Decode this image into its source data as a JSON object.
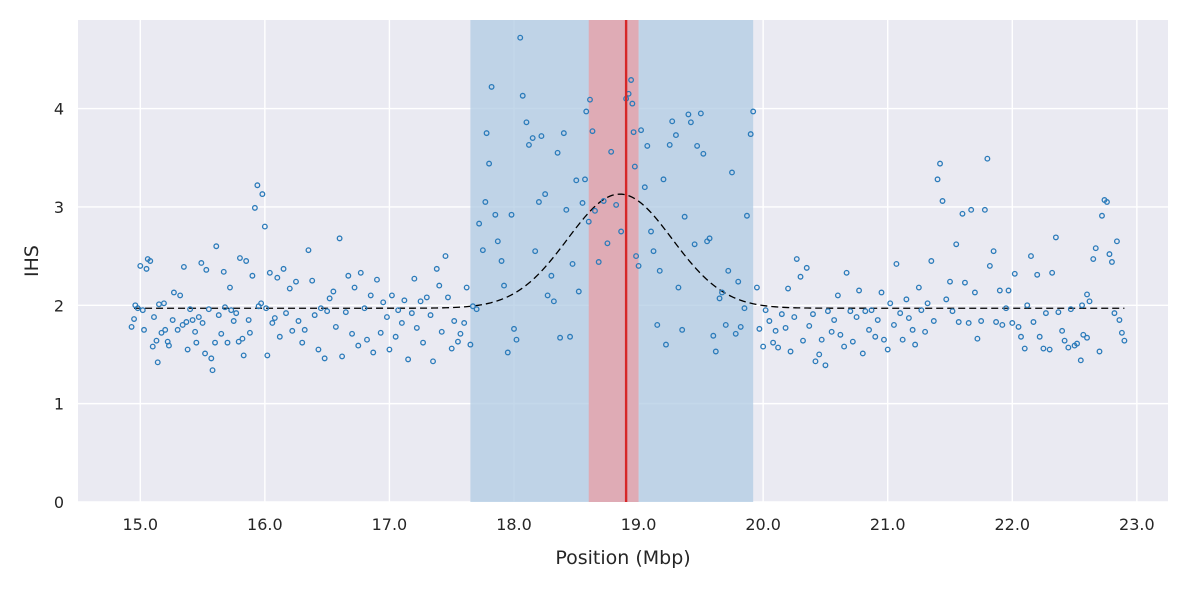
{
  "chart_data": {
    "type": "scatter",
    "xlabel": "Position (Mbp)",
    "ylabel": "IHS",
    "xlim": [
      14.5,
      23.25
    ],
    "ylim": [
      0,
      4.9
    ],
    "grid": true,
    "x_ticks": [
      "15.0",
      "16.0",
      "17.0",
      "18.0",
      "19.0",
      "20.0",
      "21.0",
      "22.0",
      "23.0"
    ],
    "y_ticks": [
      "0",
      "1",
      "2",
      "3",
      "4"
    ],
    "colors": {
      "background": "#eaeaf2",
      "grid": "#ffffff",
      "points": "#2b7bba",
      "curve": "#000000",
      "outer_region": "#b0cbe3",
      "inner_region": "#e4a3ab",
      "peak_line": "#d62728"
    },
    "outer_region": [
      17.65,
      19.92
    ],
    "inner_region": [
      18.6,
      19.0
    ],
    "peak_line": 18.9,
    "curve": {
      "type": "gaussian",
      "baseline": 1.97,
      "amplitude": 1.16,
      "center": 18.85,
      "sigma": 0.42,
      "x_start": 14.95,
      "x_end": 22.9
    },
    "points": [
      [
        14.93,
        1.78
      ],
      [
        14.95,
        1.86
      ],
      [
        14.96,
        2.0
      ],
      [
        14.98,
        1.97
      ],
      [
        15.0,
        2.4
      ],
      [
        15.02,
        1.95
      ],
      [
        15.03,
        1.75
      ],
      [
        15.05,
        2.37
      ],
      [
        15.06,
        2.47
      ],
      [
        15.08,
        2.45
      ],
      [
        15.1,
        1.58
      ],
      [
        15.11,
        1.88
      ],
      [
        15.13,
        1.64
      ],
      [
        15.14,
        1.42
      ],
      [
        15.15,
        2.01
      ],
      [
        15.17,
        1.72
      ],
      [
        15.19,
        2.02
      ],
      [
        15.2,
        1.75
      ],
      [
        15.22,
        1.63
      ],
      [
        15.23,
        1.59
      ],
      [
        15.26,
        1.85
      ],
      [
        15.27,
        2.13
      ],
      [
        15.3,
        1.75
      ],
      [
        15.32,
        2.1
      ],
      [
        15.34,
        1.8
      ],
      [
        15.35,
        2.39
      ],
      [
        15.37,
        1.83
      ],
      [
        15.38,
        1.55
      ],
      [
        15.4,
        1.96
      ],
      [
        15.42,
        1.85
      ],
      [
        15.44,
        1.73
      ],
      [
        15.45,
        1.62
      ],
      [
        15.47,
        1.88
      ],
      [
        15.49,
        2.43
      ],
      [
        15.5,
        1.82
      ],
      [
        15.52,
        1.51
      ],
      [
        15.53,
        2.36
      ],
      [
        15.55,
        1.96
      ],
      [
        15.57,
        1.46
      ],
      [
        15.58,
        1.34
      ],
      [
        15.6,
        1.62
      ],
      [
        15.61,
        2.6
      ],
      [
        15.63,
        1.9
      ],
      [
        15.65,
        1.71
      ],
      [
        15.67,
        2.34
      ],
      [
        15.68,
        1.98
      ],
      [
        15.7,
        1.62
      ],
      [
        15.72,
        2.18
      ],
      [
        15.73,
        1.95
      ],
      [
        15.75,
        1.84
      ],
      [
        15.77,
        1.92
      ],
      [
        15.79,
        1.63
      ],
      [
        15.8,
        2.48
      ],
      [
        15.82,
        1.66
      ],
      [
        15.83,
        1.49
      ],
      [
        15.85,
        2.45
      ],
      [
        15.87,
        1.85
      ],
      [
        15.88,
        1.72
      ],
      [
        15.9,
        2.3
      ],
      [
        15.92,
        2.99
      ],
      [
        15.94,
        3.22
      ],
      [
        15.95,
        1.99
      ],
      [
        15.97,
        2.02
      ],
      [
        15.98,
        3.13
      ],
      [
        16.0,
        2.8
      ],
      [
        16.01,
        1.97
      ],
      [
        16.02,
        1.49
      ],
      [
        16.04,
        2.33
      ],
      [
        16.06,
        1.82
      ],
      [
        16.08,
        1.87
      ],
      [
        16.1,
        2.28
      ],
      [
        16.12,
        1.68
      ],
      [
        16.15,
        2.37
      ],
      [
        16.17,
        1.92
      ],
      [
        16.2,
        2.17
      ],
      [
        16.22,
        1.74
      ],
      [
        16.25,
        2.24
      ],
      [
        16.27,
        1.84
      ],
      [
        16.3,
        1.62
      ],
      [
        16.32,
        1.75
      ],
      [
        16.35,
        2.56
      ],
      [
        16.38,
        2.25
      ],
      [
        16.4,
        1.9
      ],
      [
        16.43,
        1.55
      ],
      [
        16.45,
        1.97
      ],
      [
        16.48,
        1.46
      ],
      [
        16.5,
        1.94
      ],
      [
        16.52,
        2.07
      ],
      [
        16.55,
        2.14
      ],
      [
        16.57,
        1.78
      ],
      [
        16.6,
        2.68
      ],
      [
        16.62,
        1.48
      ],
      [
        16.65,
        1.93
      ],
      [
        16.67,
        2.3
      ],
      [
        16.7,
        1.71
      ],
      [
        16.72,
        2.18
      ],
      [
        16.75,
        1.59
      ],
      [
        16.77,
        2.33
      ],
      [
        16.8,
        1.97
      ],
      [
        16.82,
        1.65
      ],
      [
        16.85,
        2.1
      ],
      [
        16.87,
        1.52
      ],
      [
        16.9,
        2.26
      ],
      [
        16.93,
        1.72
      ],
      [
        16.95,
        2.03
      ],
      [
        16.98,
        1.88
      ],
      [
        17.0,
        1.55
      ],
      [
        17.02,
        2.1
      ],
      [
        17.05,
        1.68
      ],
      [
        17.07,
        1.95
      ],
      [
        17.1,
        1.82
      ],
      [
        17.12,
        2.05
      ],
      [
        17.15,
        1.45
      ],
      [
        17.18,
        1.92
      ],
      [
        17.2,
        2.27
      ],
      [
        17.22,
        1.77
      ],
      [
        17.25,
        2.04
      ],
      [
        17.27,
        1.62
      ],
      [
        17.3,
        2.08
      ],
      [
        17.33,
        1.9
      ],
      [
        17.35,
        1.43
      ],
      [
        17.38,
        2.37
      ],
      [
        17.4,
        2.2
      ],
      [
        17.42,
        1.73
      ],
      [
        17.45,
        2.5
      ],
      [
        17.47,
        2.08
      ],
      [
        17.5,
        1.56
      ],
      [
        17.52,
        1.84
      ],
      [
        17.55,
        1.63
      ],
      [
        17.57,
        1.71
      ],
      [
        17.6,
        1.82
      ],
      [
        17.62,
        2.18
      ],
      [
        17.65,
        1.6
      ],
      [
        17.67,
        1.99
      ],
      [
        17.7,
        1.96
      ],
      [
        17.72,
        2.83
      ],
      [
        17.75,
        2.56
      ],
      [
        17.77,
        3.05
      ],
      [
        17.78,
        3.75
      ],
      [
        17.8,
        3.44
      ],
      [
        17.82,
        4.22
      ],
      [
        17.85,
        2.92
      ],
      [
        17.87,
        2.65
      ],
      [
        17.9,
        2.45
      ],
      [
        17.92,
        2.2
      ],
      [
        17.95,
        1.52
      ],
      [
        17.98,
        2.92
      ],
      [
        18.0,
        1.76
      ],
      [
        18.02,
        1.65
      ],
      [
        18.05,
        4.72
      ],
      [
        18.07,
        4.13
      ],
      [
        18.1,
        3.86
      ],
      [
        18.12,
        3.63
      ],
      [
        18.15,
        3.7
      ],
      [
        18.17,
        2.55
      ],
      [
        18.2,
        3.05
      ],
      [
        18.22,
        3.72
      ],
      [
        18.25,
        3.13
      ],
      [
        18.27,
        2.1
      ],
      [
        18.3,
        2.3
      ],
      [
        18.32,
        2.04
      ],
      [
        18.35,
        3.55
      ],
      [
        18.37,
        1.67
      ],
      [
        18.4,
        3.75
      ],
      [
        18.42,
        2.97
      ],
      [
        18.45,
        1.68
      ],
      [
        18.47,
        2.42
      ],
      [
        18.5,
        3.27
      ],
      [
        18.52,
        2.14
      ],
      [
        18.55,
        3.04
      ],
      [
        18.57,
        3.28
      ],
      [
        18.58,
        3.97
      ],
      [
        18.6,
        2.85
      ],
      [
        18.61,
        4.09
      ],
      [
        18.63,
        3.77
      ],
      [
        18.65,
        2.96
      ],
      [
        18.68,
        2.44
      ],
      [
        18.72,
        3.06
      ],
      [
        18.75,
        2.63
      ],
      [
        18.78,
        3.56
      ],
      [
        18.82,
        3.02
      ],
      [
        18.86,
        2.75
      ],
      [
        18.9,
        4.1
      ],
      [
        18.92,
        4.15
      ],
      [
        18.94,
        4.29
      ],
      [
        18.95,
        4.05
      ],
      [
        18.96,
        3.76
      ],
      [
        18.97,
        3.41
      ],
      [
        18.98,
        2.5
      ],
      [
        19.0,
        2.4
      ],
      [
        19.02,
        3.78
      ],
      [
        19.05,
        3.2
      ],
      [
        19.07,
        3.62
      ],
      [
        19.1,
        2.75
      ],
      [
        19.12,
        2.55
      ],
      [
        19.15,
        1.8
      ],
      [
        19.17,
        2.35
      ],
      [
        19.2,
        3.28
      ],
      [
        19.22,
        1.6
      ],
      [
        19.25,
        3.63
      ],
      [
        19.27,
        3.87
      ],
      [
        19.3,
        3.73
      ],
      [
        19.32,
        2.18
      ],
      [
        19.35,
        1.75
      ],
      [
        19.37,
        2.9
      ],
      [
        19.4,
        3.94
      ],
      [
        19.42,
        3.86
      ],
      [
        19.45,
        2.62
      ],
      [
        19.47,
        3.62
      ],
      [
        19.5,
        3.95
      ],
      [
        19.52,
        3.54
      ],
      [
        19.55,
        2.65
      ],
      [
        19.57,
        2.68
      ],
      [
        19.6,
        1.69
      ],
      [
        19.62,
        1.53
      ],
      [
        19.65,
        2.07
      ],
      [
        19.67,
        2.13
      ],
      [
        19.7,
        1.8
      ],
      [
        19.72,
        2.35
      ],
      [
        19.75,
        3.35
      ],
      [
        19.78,
        1.71
      ],
      [
        19.8,
        2.24
      ],
      [
        19.82,
        1.78
      ],
      [
        19.85,
        1.97
      ],
      [
        19.87,
        2.91
      ],
      [
        19.9,
        3.74
      ],
      [
        19.92,
        3.97
      ],
      [
        19.95,
        2.18
      ],
      [
        19.97,
        1.76
      ],
      [
        20.0,
        1.58
      ],
      [
        20.02,
        1.95
      ],
      [
        20.05,
        1.84
      ],
      [
        20.08,
        1.62
      ],
      [
        20.1,
        1.74
      ],
      [
        20.12,
        1.57
      ],
      [
        20.15,
        1.91
      ],
      [
        20.18,
        1.77
      ],
      [
        20.2,
        2.17
      ],
      [
        20.22,
        1.53
      ],
      [
        20.25,
        1.88
      ],
      [
        20.27,
        2.47
      ],
      [
        20.3,
        2.29
      ],
      [
        20.32,
        1.64
      ],
      [
        20.35,
        2.38
      ],
      [
        20.37,
        1.79
      ],
      [
        20.4,
        1.91
      ],
      [
        20.42,
        1.43
      ],
      [
        20.45,
        1.5
      ],
      [
        20.47,
        1.65
      ],
      [
        20.5,
        1.39
      ],
      [
        20.52,
        1.94
      ],
      [
        20.55,
        1.73
      ],
      [
        20.57,
        1.85
      ],
      [
        20.6,
        2.1
      ],
      [
        20.62,
        1.7
      ],
      [
        20.65,
        1.58
      ],
      [
        20.67,
        2.33
      ],
      [
        20.7,
        1.94
      ],
      [
        20.72,
        1.63
      ],
      [
        20.75,
        1.88
      ],
      [
        20.77,
        2.15
      ],
      [
        20.8,
        1.51
      ],
      [
        20.82,
        1.94
      ],
      [
        20.85,
        1.75
      ],
      [
        20.87,
        1.95
      ],
      [
        20.9,
        1.68
      ],
      [
        20.92,
        1.85
      ],
      [
        20.95,
        2.13
      ],
      [
        20.97,
        1.65
      ],
      [
        21.0,
        1.55
      ],
      [
        21.02,
        2.02
      ],
      [
        21.05,
        1.8
      ],
      [
        21.07,
        2.42
      ],
      [
        21.1,
        1.92
      ],
      [
        21.12,
        1.65
      ],
      [
        21.15,
        2.06
      ],
      [
        21.17,
        1.87
      ],
      [
        21.2,
        1.75
      ],
      [
        21.22,
        1.6
      ],
      [
        21.25,
        2.18
      ],
      [
        21.27,
        1.95
      ],
      [
        21.3,
        1.73
      ],
      [
        21.32,
        2.02
      ],
      [
        21.35,
        2.45
      ],
      [
        21.37,
        1.84
      ],
      [
        21.4,
        3.28
      ],
      [
        21.42,
        3.44
      ],
      [
        21.44,
        3.06
      ],
      [
        21.47,
        2.06
      ],
      [
        21.5,
        2.24
      ],
      [
        21.52,
        1.94
      ],
      [
        21.55,
        2.62
      ],
      [
        21.57,
        1.83
      ],
      [
        21.6,
        2.93
      ],
      [
        21.62,
        2.23
      ],
      [
        21.65,
        1.82
      ],
      [
        21.67,
        2.97
      ],
      [
        21.7,
        2.13
      ],
      [
        21.72,
        1.66
      ],
      [
        21.75,
        1.84
      ],
      [
        21.78,
        2.97
      ],
      [
        21.8,
        3.49
      ],
      [
        21.82,
        2.4
      ],
      [
        21.85,
        2.55
      ],
      [
        21.87,
        1.83
      ],
      [
        21.9,
        2.15
      ],
      [
        21.92,
        1.8
      ],
      [
        21.95,
        1.97
      ],
      [
        21.97,
        2.15
      ],
      [
        22.0,
        1.82
      ],
      [
        22.02,
        2.32
      ],
      [
        22.05,
        1.78
      ],
      [
        22.07,
        1.68
      ],
      [
        22.1,
        1.56
      ],
      [
        22.12,
        2.0
      ],
      [
        22.15,
        2.5
      ],
      [
        22.17,
        1.83
      ],
      [
        22.2,
        2.31
      ],
      [
        22.22,
        1.68
      ],
      [
        22.25,
        1.56
      ],
      [
        22.27,
        1.92
      ],
      [
        22.3,
        1.55
      ],
      [
        22.32,
        2.33
      ],
      [
        22.35,
        2.69
      ],
      [
        22.37,
        1.93
      ],
      [
        22.4,
        1.74
      ],
      [
        22.42,
        1.64
      ],
      [
        22.45,
        1.57
      ],
      [
        22.47,
        1.96
      ],
      [
        22.5,
        1.59
      ],
      [
        22.52,
        1.61
      ],
      [
        22.55,
        1.44
      ],
      [
        22.57,
        1.7
      ],
      [
        22.6,
        2.11
      ],
      [
        22.62,
        2.04
      ],
      [
        22.65,
        2.47
      ],
      [
        22.67,
        2.58
      ],
      [
        22.7,
        1.53
      ],
      [
        22.72,
        2.91
      ],
      [
        22.74,
        3.07
      ],
      [
        22.76,
        3.05
      ],
      [
        22.78,
        2.52
      ],
      [
        22.8,
        2.44
      ],
      [
        22.82,
        1.92
      ],
      [
        22.84,
        2.65
      ],
      [
        22.86,
        1.85
      ],
      [
        22.88,
        1.72
      ],
      [
        22.9,
        1.64
      ],
      [
        22.56,
        2.0
      ],
      [
        22.6,
        1.67
      ]
    ]
  }
}
